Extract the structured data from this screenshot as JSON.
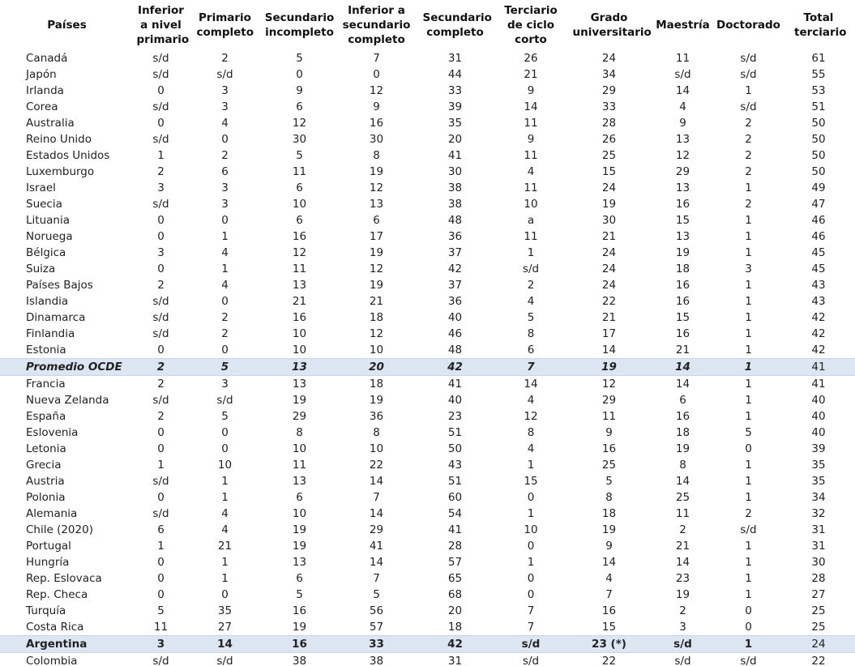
{
  "table": {
    "headers": [
      "Países",
      "Inferior a nivel primario",
      "Primario completo",
      "Secundario incompleto",
      "Inferior a secundario completo",
      "Secundario completo",
      "Terciario de ciclo corto",
      "Grado universitario",
      "Maestría",
      "Doctorado",
      "Total terciario"
    ],
    "highlight": [
      19,
      36
    ],
    "rows": [
      [
        "Canadá",
        "s/d",
        2,
        5,
        7,
        31,
        26,
        24,
        11,
        "s/d",
        61
      ],
      [
        "Japón",
        "s/d",
        "s/d",
        0,
        0,
        44,
        21,
        34,
        "s/d",
        "s/d",
        55
      ],
      [
        "Irlanda",
        0,
        3,
        9,
        12,
        33,
        9,
        29,
        14,
        1,
        53
      ],
      [
        "Corea",
        "s/d",
        3,
        6,
        9,
        39,
        14,
        33,
        4,
        "s/d",
        51
      ],
      [
        "Australia",
        0,
        4,
        12,
        16,
        35,
        11,
        28,
        9,
        2,
        50
      ],
      [
        "Reino Unido",
        "s/d",
        0,
        30,
        30,
        20,
        9,
        26,
        13,
        2,
        50
      ],
      [
        "Estados Unidos",
        1,
        2,
        5,
        8,
        41,
        11,
        25,
        12,
        2,
        50
      ],
      [
        "Luxemburgo",
        2,
        6,
        11,
        19,
        30,
        4,
        15,
        29,
        2,
        50
      ],
      [
        "Israel",
        3,
        3,
        6,
        12,
        38,
        11,
        24,
        13,
        1,
        49
      ],
      [
        "Suecia",
        "s/d",
        3,
        10,
        13,
        38,
        10,
        19,
        16,
        2,
        47
      ],
      [
        "Lituania",
        0,
        0,
        6,
        6,
        48,
        "a",
        30,
        15,
        1,
        46
      ],
      [
        "Noruega",
        0,
        1,
        16,
        17,
        36,
        11,
        21,
        13,
        1,
        46
      ],
      [
        "Bélgica",
        3,
        4,
        12,
        19,
        37,
        1,
        24,
        19,
        1,
        45
      ],
      [
        "Suiza",
        0,
        1,
        11,
        12,
        42,
        "s/d",
        24,
        18,
        3,
        45
      ],
      [
        "Países Bajos",
        2,
        4,
        13,
        19,
        37,
        2,
        24,
        16,
        1,
        43
      ],
      [
        "Islandia",
        "s/d",
        0,
        21,
        21,
        36,
        4,
        22,
        16,
        1,
        43
      ],
      [
        "Dinamarca",
        "s/d",
        2,
        16,
        18,
        40,
        5,
        21,
        15,
        1,
        42
      ],
      [
        "Finlandia",
        "s/d",
        2,
        10,
        12,
        46,
        8,
        17,
        16,
        1,
        42
      ],
      [
        "Estonia",
        0,
        0,
        10,
        10,
        48,
        6,
        14,
        21,
        1,
        42
      ],
      [
        "Promedio OCDE",
        2,
        5,
        13,
        20,
        42,
        7,
        19,
        14,
        1,
        41
      ],
      [
        "Francia",
        2,
        3,
        13,
        18,
        41,
        14,
        12,
        14,
        1,
        41
      ],
      [
        "Nueva Zelanda",
        "s/d",
        "s/d",
        19,
        19,
        40,
        4,
        29,
        6,
        1,
        40
      ],
      [
        "España",
        2,
        5,
        29,
        36,
        23,
        12,
        11,
        16,
        1,
        40
      ],
      [
        "Eslovenia",
        0,
        0,
        8,
        8,
        51,
        8,
        9,
        18,
        5,
        40
      ],
      [
        "Letonia",
        0,
        0,
        10,
        10,
        50,
        4,
        16,
        19,
        0,
        39
      ],
      [
        "Grecia",
        1,
        10,
        11,
        22,
        43,
        1,
        25,
        8,
        1,
        35
      ],
      [
        "Austria",
        "s/d",
        1,
        13,
        14,
        51,
        15,
        5,
        14,
        1,
        35
      ],
      [
        "Polonia",
        0,
        1,
        6,
        7,
        60,
        0,
        8,
        25,
        1,
        34
      ],
      [
        "Alemania",
        "s/d",
        4,
        10,
        14,
        54,
        1,
        18,
        11,
        2,
        32
      ],
      [
        "Chile (2020)",
        6,
        4,
        19,
        29,
        41,
        10,
        19,
        2,
        "s/d",
        31
      ],
      [
        "Portugal",
        1,
        21,
        19,
        41,
        28,
        0,
        9,
        21,
        1,
        31
      ],
      [
        "Hungría",
        0,
        1,
        13,
        14,
        57,
        1,
        14,
        14,
        1,
        30
      ],
      [
        "Rep. Eslovaca",
        0,
        1,
        6,
        7,
        65,
        0,
        4,
        23,
        1,
        28
      ],
      [
        "Rep. Checa",
        0,
        0,
        5,
        5,
        68,
        0,
        7,
        19,
        1,
        27
      ],
      [
        "Turquía",
        5,
        35,
        16,
        56,
        20,
        7,
        16,
        2,
        0,
        25
      ],
      [
        "Costa Rica",
        11,
        27,
        19,
        57,
        18,
        7,
        15,
        3,
        0,
        25
      ],
      [
        "Argentina",
        3,
        14,
        16,
        33,
        42,
        "s/d",
        "23 (*)",
        "s/d",
        1,
        24
      ],
      [
        "Colombia",
        "s/d",
        "s/d",
        38,
        38,
        31,
        "s/d",
        22,
        "s/d",
        "s/d",
        22
      ]
    ]
  }
}
